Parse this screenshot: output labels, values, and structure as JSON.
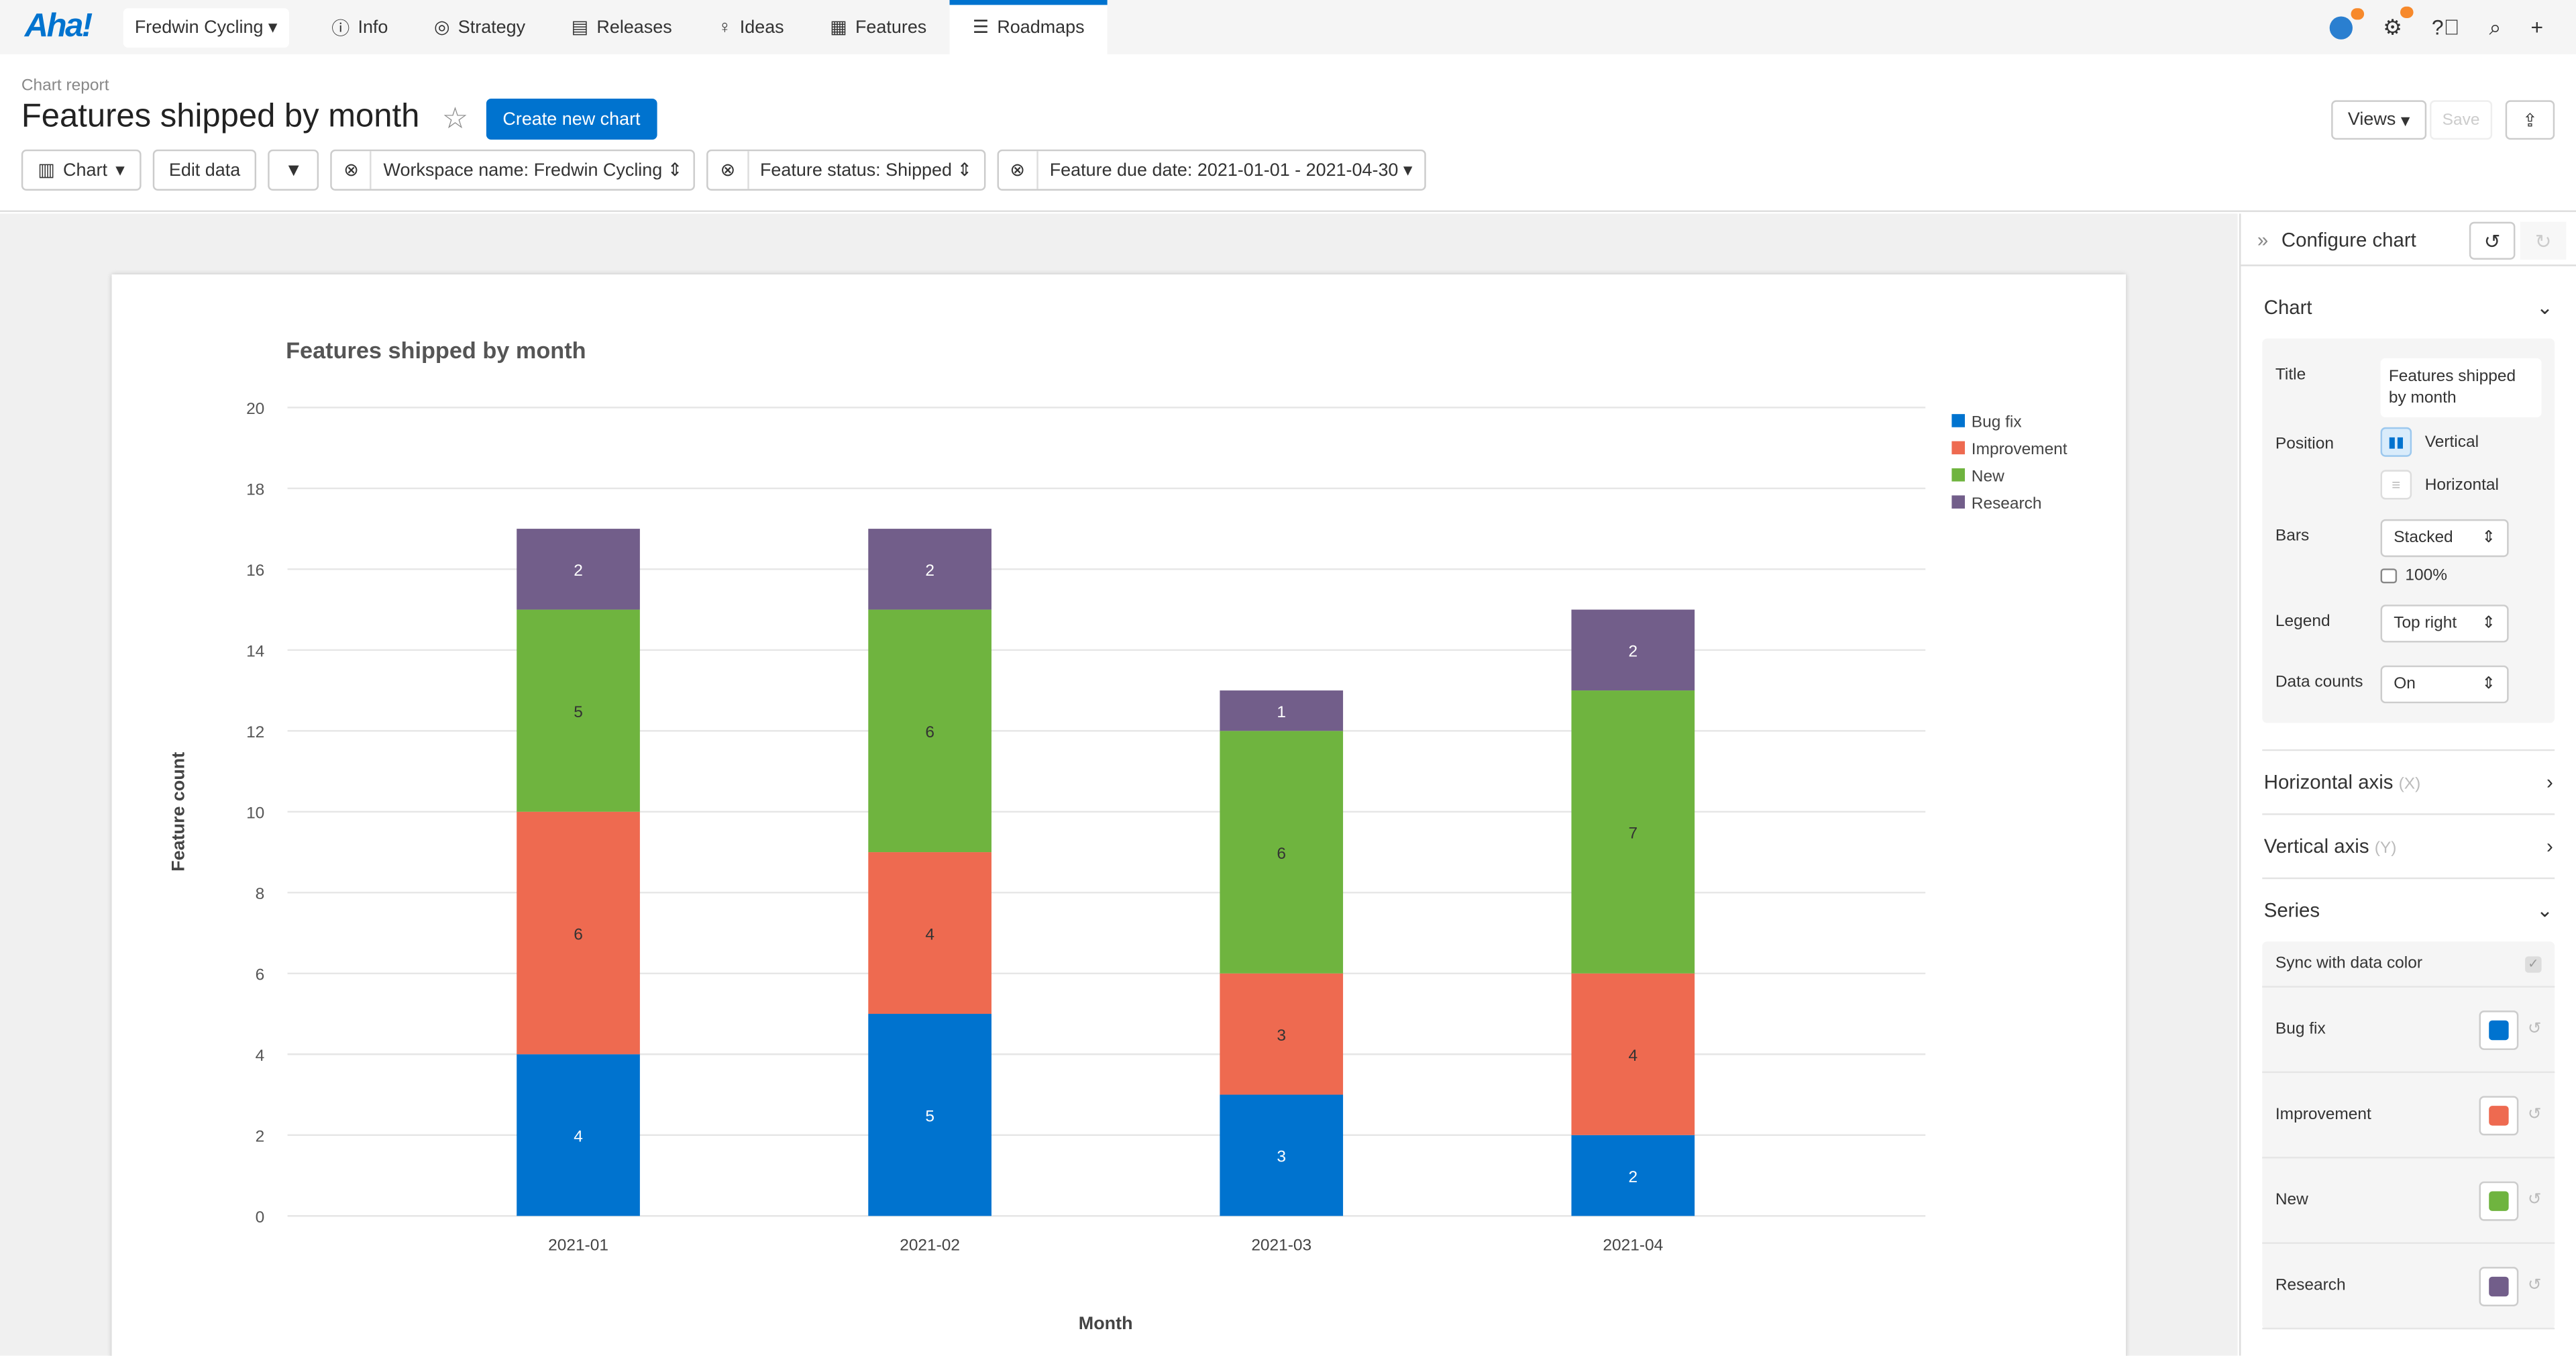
{
  "nav": {
    "logo": "Aha!",
    "workspace": "Fredwin Cycling",
    "items": [
      "Info",
      "Strategy",
      "Releases",
      "Ideas",
      "Features",
      "Roadmaps"
    ],
    "active": "Roadmaps"
  },
  "header": {
    "breadcrumb": "Chart report",
    "title": "Features shipped by month",
    "create_button": "Create new chart",
    "views": "Views",
    "save": "Save"
  },
  "toolbar": {
    "chart": "Chart",
    "edit_data": "Edit data",
    "filters": [
      "Workspace name: Fredwin Cycling",
      "Feature status: Shipped",
      "Feature due date: 2021-01-01 - 2021-04-30"
    ]
  },
  "panel": {
    "title": "Configure chart",
    "chart_section": "Chart",
    "title_label": "Title",
    "title_value": "Features shipped by month",
    "position_label": "Position",
    "vertical": "Vertical",
    "horizontal": "Horizontal",
    "bars_label": "Bars",
    "bars_value": "Stacked",
    "percent": "100%",
    "legend_label": "Legend",
    "legend_value": "Top right",
    "counts_label": "Data counts",
    "counts_value": "On",
    "haxis": "Horizontal axis",
    "haxis_hint": "(X)",
    "vaxis": "Vertical axis",
    "vaxis_hint": "(Y)",
    "series": "Series",
    "sync": "Sync with data color"
  },
  "chart_data": {
    "type": "bar",
    "stacked": true,
    "title": "Features shipped by month",
    "xlabel": "Month",
    "ylabel": "Feature count",
    "ylim": [
      0,
      20
    ],
    "yticks": [
      0,
      2,
      4,
      6,
      8,
      10,
      12,
      14,
      16,
      18,
      20
    ],
    "grid": true,
    "legend": "top-right",
    "data_labels": true,
    "categories": [
      "2021-01",
      "2021-02",
      "2021-03",
      "2021-04"
    ],
    "series": [
      {
        "name": "Bug fix",
        "color": "#0073cf",
        "values": [
          4,
          5,
          3,
          2
        ]
      },
      {
        "name": "Improvement",
        "color": "#ee6a50",
        "values": [
          6,
          4,
          3,
          4
        ]
      },
      {
        "name": "New",
        "color": "#6fb43f",
        "values": [
          5,
          6,
          6,
          7
        ]
      },
      {
        "name": "Research",
        "color": "#725e8a",
        "values": [
          2,
          2,
          1,
          2
        ]
      }
    ]
  }
}
